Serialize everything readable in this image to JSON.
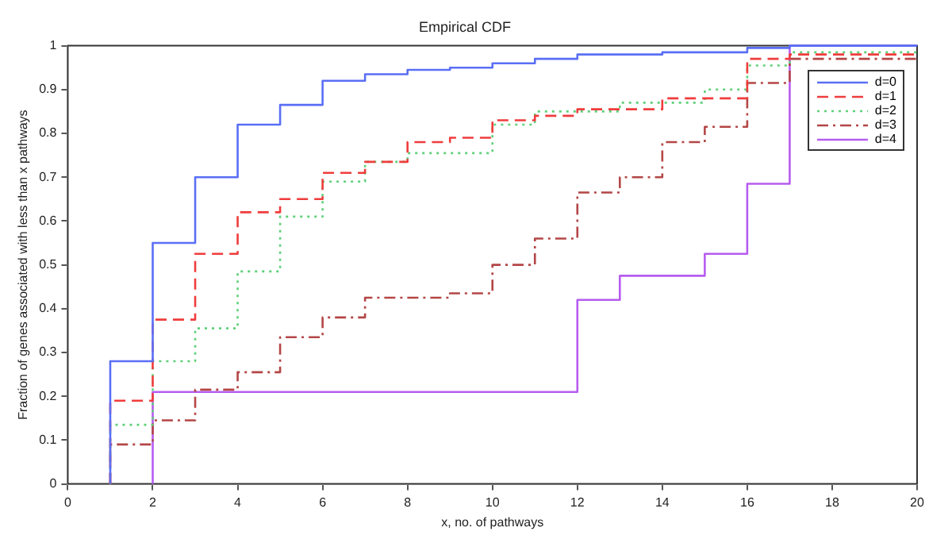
{
  "chart_data": {
    "type": "step",
    "title": "Empirical CDF",
    "xlabel": "x, no. of pathways",
    "ylabel": "Fraction of genes associated with less than x pathways",
    "xlim": [
      0,
      20
    ],
    "xticks": [
      0,
      2,
      4,
      6,
      8,
      10,
      12,
      14,
      16,
      18,
      20
    ],
    "ylim": [
      0,
      1
    ],
    "yticks": [
      0,
      0.1,
      0.2,
      0.3,
      0.4,
      0.5,
      0.6,
      0.7,
      0.8,
      0.9,
      1
    ],
    "grid": false,
    "legend": "top right",
    "series": [
      {
        "name": "d=0",
        "color": "#5a6ff5",
        "line_style": "solid",
        "x": [
          1,
          1,
          2,
          3,
          4,
          5,
          6,
          7,
          8,
          9,
          10,
          11,
          12,
          14,
          16,
          17,
          20
        ],
        "values": [
          0,
          0.28,
          0.55,
          0.7,
          0.82,
          0.865,
          0.92,
          0.935,
          0.945,
          0.95,
          0.96,
          0.97,
          0.98,
          0.985,
          0.995,
          1,
          1
        ]
      },
      {
        "name": "d=1",
        "color": "#f03c3c",
        "line_style": "dashed",
        "x": [
          1,
          1,
          2,
          3,
          4,
          5,
          6,
          7,
          8,
          9,
          10,
          11,
          12,
          14,
          16,
          17,
          20
        ],
        "values": [
          0,
          0.19,
          0.375,
          0.525,
          0.62,
          0.65,
          0.71,
          0.735,
          0.78,
          0.79,
          0.83,
          0.84,
          0.855,
          0.88,
          0.97,
          0.98,
          0.98
        ]
      },
      {
        "name": "d=2",
        "color": "#5fd07a",
        "line_style": "dotted",
        "x": [
          1,
          1,
          2,
          3,
          4,
          5,
          6,
          7,
          8,
          10,
          11,
          13,
          15,
          16,
          17,
          20
        ],
        "values": [
          0,
          0.135,
          0.28,
          0.355,
          0.485,
          0.61,
          0.69,
          0.735,
          0.755,
          0.82,
          0.85,
          0.87,
          0.9,
          0.955,
          0.985,
          0.985
        ]
      },
      {
        "name": "d=3",
        "color": "#b44646",
        "line_style": "dashdot",
        "x": [
          1,
          1,
          2,
          3,
          4,
          5,
          6,
          7,
          9,
          10,
          11,
          12,
          13,
          14,
          15,
          16,
          17,
          20
        ],
        "values": [
          0,
          0.09,
          0.145,
          0.215,
          0.255,
          0.335,
          0.38,
          0.425,
          0.435,
          0.5,
          0.56,
          0.665,
          0.7,
          0.78,
          0.815,
          0.915,
          0.97,
          0.97
        ]
      },
      {
        "name": "d=4",
        "color": "#b65cf0",
        "line_style": "solid",
        "x": [
          2,
          2,
          12,
          13,
          15,
          16,
          17,
          20
        ],
        "values": [
          0,
          0.21,
          0.42,
          0.475,
          0.525,
          0.685,
          1,
          1
        ]
      }
    ]
  }
}
